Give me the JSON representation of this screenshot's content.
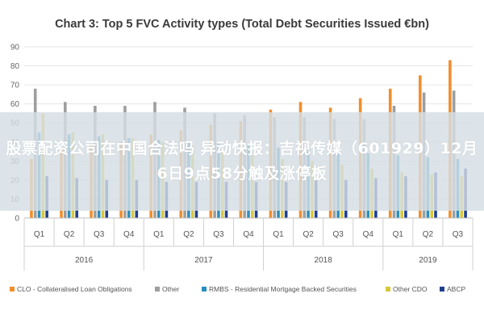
{
  "chart_data": {
    "type": "bar",
    "title": "Chart 3: Top 5 FVC Activity types (Total Debt Securities Issued €bn)",
    "ylim": [
      0,
      90
    ],
    "yticks": [
      0,
      10,
      20,
      30,
      40,
      50,
      60,
      70,
      80,
      90
    ],
    "grid": true,
    "legend_position": "bottom",
    "categories": [
      "Q1",
      "Q2",
      "Q3",
      "Q4",
      "Q1",
      "Q2",
      "Q3",
      "Q4",
      "Q1",
      "Q2",
      "Q3",
      "Q4",
      "Q1",
      "Q2",
      "Q3"
    ],
    "years": [
      {
        "label": "2016",
        "span": 4
      },
      {
        "label": "2017",
        "span": 4
      },
      {
        "label": "2018",
        "span": 4
      },
      {
        "label": "2019",
        "span": 3
      }
    ],
    "series": [
      {
        "name": "CLO - Collateralised Loan Obligations",
        "color": "#f28e2b",
        "values": [
          31,
          37,
          39,
          40,
          44,
          46,
          49,
          51,
          57,
          61,
          58,
          63,
          68,
          75,
          83
        ]
      },
      {
        "name": "Other",
        "color": "#9e9e9e",
        "values": [
          68,
          61,
          59,
          59,
          61,
          58,
          55,
          54,
          53,
          53,
          52,
          52,
          59,
          66,
          67
        ]
      },
      {
        "name": "RMBS - Residential Mortgage Backed Securities",
        "color": "#2a8fbd",
        "values": [
          45,
          44,
          43,
          42,
          41,
          40,
          39,
          38,
          37,
          36,
          35,
          34,
          33,
          32,
          31
        ]
      },
      {
        "name": "Other CDO",
        "color": "#d8c73a",
        "values": [
          55,
          45,
          44,
          42,
          40,
          38,
          35,
          33,
          31,
          30,
          28,
          26,
          24,
          23,
          22
        ]
      },
      {
        "name": "ABCP",
        "color": "#1f3f8f",
        "values": [
          22,
          21,
          20,
          20,
          19,
          19,
          19,
          19,
          19,
          20,
          20,
          21,
          22,
          24,
          26
        ]
      }
    ]
  },
  "overlay": {
    "text": "股票配资公司在中国合法吗 异动快报：吉视传媒（601929）12月6日9点58分触及涨停板"
  }
}
